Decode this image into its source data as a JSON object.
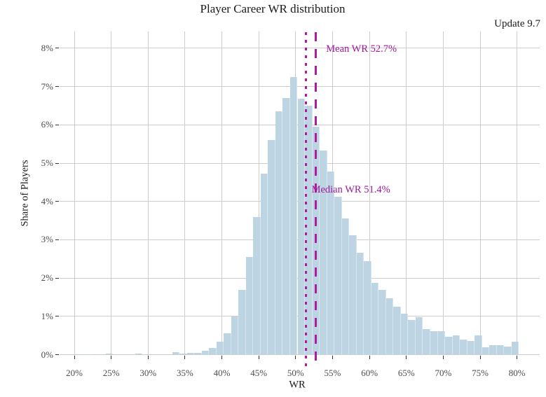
{
  "title": "Player Career WR distribution",
  "corner_note": "Update 9.7",
  "colors": {
    "bar_fill": "#bdd5e2",
    "bar_edge": "#d7e6ee",
    "gridline": "#cdcdcd",
    "axis_tick": "#333333",
    "tick_label": "#4d4d4d",
    "text": "#1a1a1a",
    "accent_line": "#b01a9d",
    "accent_text": "#a0189d",
    "background": "#ffffff"
  },
  "chart_data": {
    "type": "bar",
    "subtype": "histogram",
    "title": "Player Career WR distribution",
    "xlabel": "WR",
    "ylabel": "Share of Players",
    "x_tick_values": [
      20,
      25,
      30,
      35,
      40,
      45,
      50,
      55,
      60,
      65,
      70,
      75,
      80
    ],
    "x_tick_labels": [
      "20%",
      "25%",
      "30%",
      "35%",
      "40%",
      "45%",
      "50%",
      "55%",
      "60%",
      "65%",
      "70%",
      "75%",
      "80%"
    ],
    "y_tick_values": [
      0,
      1,
      2,
      3,
      4,
      5,
      6,
      7,
      8
    ],
    "y_tick_labels": [
      "0%",
      "1%",
      "2%",
      "3%",
      "4%",
      "5%",
      "6%",
      "7%",
      "8%"
    ],
    "xlim": [
      18,
      83
    ],
    "ylim": [
      0,
      8.4
    ],
    "grid": "major-only",
    "bin_width_pct": 1,
    "bins": [
      {
        "x": 22,
        "h": 0.01
      },
      {
        "x": 25,
        "h": 0.02
      },
      {
        "x": 29,
        "h": 0.02
      },
      {
        "x": 34,
        "h": 0.07
      },
      {
        "x": 35,
        "h": 0.02
      },
      {
        "x": 36,
        "h": 0.04
      },
      {
        "x": 37,
        "h": 0.05
      },
      {
        "x": 38,
        "h": 0.11
      },
      {
        "x": 39,
        "h": 0.17
      },
      {
        "x": 40,
        "h": 0.34
      },
      {
        "x": 41,
        "h": 0.55
      },
      {
        "x": 42,
        "h": 1.0
      },
      {
        "x": 43,
        "h": 1.7
      },
      {
        "x": 44,
        "h": 2.56
      },
      {
        "x": 45,
        "h": 3.6
      },
      {
        "x": 46,
        "h": 4.72
      },
      {
        "x": 47,
        "h": 5.6
      },
      {
        "x": 48,
        "h": 6.36
      },
      {
        "x": 49,
        "h": 6.7
      },
      {
        "x": 50,
        "h": 7.25
      },
      {
        "x": 51,
        "h": 6.68
      },
      {
        "x": 52,
        "h": 6.5
      },
      {
        "x": 53,
        "h": 5.95
      },
      {
        "x": 54,
        "h": 5.33
      },
      {
        "x": 55,
        "h": 4.78
      },
      {
        "x": 56,
        "h": 4.13
      },
      {
        "x": 57,
        "h": 3.56
      },
      {
        "x": 58,
        "h": 3.12
      },
      {
        "x": 59,
        "h": 2.66
      },
      {
        "x": 60,
        "h": 2.45
      },
      {
        "x": 61,
        "h": 1.88
      },
      {
        "x": 62,
        "h": 1.69
      },
      {
        "x": 63,
        "h": 1.48
      },
      {
        "x": 64,
        "h": 1.25
      },
      {
        "x": 65,
        "h": 1.07
      },
      {
        "x": 66,
        "h": 0.91
      },
      {
        "x": 67,
        "h": 0.97
      },
      {
        "x": 68,
        "h": 0.67
      },
      {
        "x": 69,
        "h": 0.61
      },
      {
        "x": 70,
        "h": 0.61
      },
      {
        "x": 71,
        "h": 0.47
      },
      {
        "x": 72,
        "h": 0.5
      },
      {
        "x": 73,
        "h": 0.39
      },
      {
        "x": 74,
        "h": 0.35
      },
      {
        "x": 75,
        "h": 0.5
      },
      {
        "x": 76,
        "h": 0.19
      },
      {
        "x": 77,
        "h": 0.25
      },
      {
        "x": 78,
        "h": 0.25
      },
      {
        "x": 79,
        "h": 0.21
      },
      {
        "x": 80,
        "h": 0.33
      }
    ],
    "mean": {
      "value": 52.7,
      "label": "Mean WR 52.7%",
      "line_style": "dashed"
    },
    "median": {
      "value": 51.4,
      "label": "Median WR 51.4%",
      "line_style": "dotted"
    },
    "legend": "none"
  }
}
